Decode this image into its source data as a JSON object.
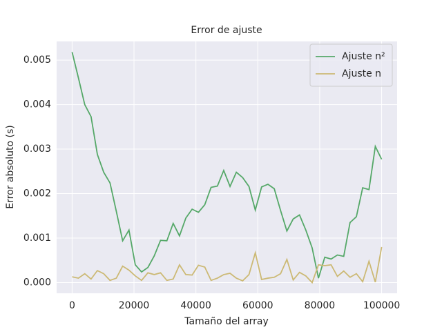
{
  "chart_data": {
    "type": "line",
    "title": "Error de ajuste",
    "xlabel": "Tamaño del array",
    "ylabel": "Error absoluto (s)",
    "x": [
      0,
      2041,
      4082,
      6122,
      8163,
      10204,
      12245,
      14286,
      16327,
      18367,
      20408,
      22449,
      24490,
      26531,
      28571,
      30612,
      32653,
      34694,
      36735,
      38776,
      40816,
      42857,
      44898,
      46939,
      48980,
      51020,
      53061,
      55102,
      57143,
      59184,
      61224,
      63265,
      65306,
      67347,
      69388,
      71429,
      73469,
      75510,
      77551,
      79592,
      81633,
      83673,
      85714,
      87755,
      89796,
      91837,
      93878,
      95918,
      97959,
      100000
    ],
    "series": [
      {
        "name": "Ajuste n²",
        "color": "#55a868",
        "values": [
          0.00518,
          0.0046,
          0.004,
          0.00373,
          0.00288,
          0.00248,
          0.00224,
          0.0016,
          0.00094,
          0.00118,
          0.0004,
          0.00024,
          0.00034,
          0.0006,
          0.00095,
          0.00094,
          0.00133,
          0.00105,
          0.00145,
          0.00165,
          0.00158,
          0.00175,
          0.00214,
          0.00217,
          0.00252,
          0.00216,
          0.00248,
          0.00236,
          0.00216,
          0.00163,
          0.00215,
          0.00221,
          0.00211,
          0.00162,
          0.00116,
          0.00143,
          0.00152,
          0.00118,
          0.00078,
          0.0001,
          0.00057,
          0.00053,
          0.00062,
          0.00059,
          0.00135,
          0.00148,
          0.00213,
          0.00209,
          0.00306,
          0.00277
        ]
      },
      {
        "name": "Ajuste n",
        "color": "#ccb974",
        "values": [
          0.00013,
          0.0001,
          0.0002,
          8e-05,
          0.00027,
          0.0002,
          5e-05,
          0.0001,
          0.00037,
          0.00028,
          0.00015,
          5e-05,
          0.00022,
          0.00018,
          0.00022,
          5e-05,
          8e-05,
          0.0004,
          0.00018,
          0.00017,
          0.00039,
          0.00035,
          5e-05,
          0.0001,
          0.00018,
          0.00021,
          0.0001,
          4e-05,
          0.00018,
          0.00067,
          7e-05,
          0.0001,
          0.00012,
          0.0002,
          0.00052,
          6e-05,
          0.00023,
          0.00015,
          0,
          0.0004,
          0.00038,
          0.0004,
          0.00014,
          0.00026,
          0.00012,
          0.0002,
          2e-05,
          0.00048,
          1e-05,
          0.0008
        ]
      }
    ],
    "xlim": [
      -5000,
      105000
    ],
    "ylim": [
      -0.00024,
      0.00542
    ],
    "xticks": [
      0,
      20000,
      40000,
      60000,
      80000,
      100000
    ],
    "yticks": [
      {
        "value": 0,
        "label": "0.000"
      },
      {
        "value": 0.001,
        "label": "0.001"
      },
      {
        "value": 0.002,
        "label": "0.002"
      },
      {
        "value": 0.003,
        "label": "0.003"
      },
      {
        "value": 0.004,
        "label": "0.004"
      },
      {
        "value": 0.005,
        "label": "0.005"
      }
    ],
    "grid": true,
    "legend": "upper right"
  }
}
